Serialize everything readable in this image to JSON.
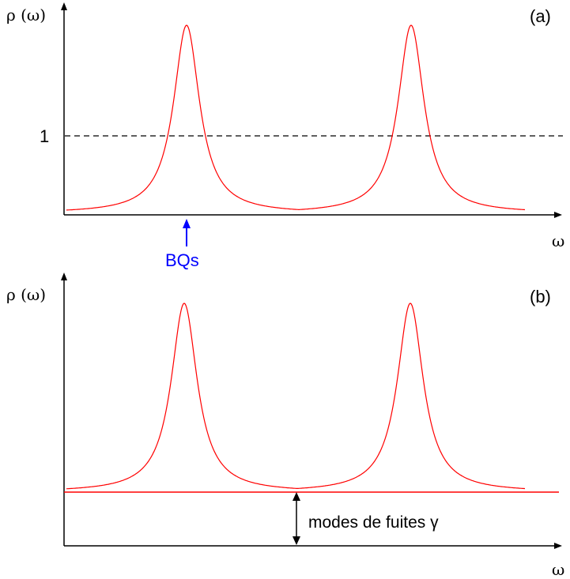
{
  "panel_a": {
    "tag": "(a)",
    "y_axis_label": "ρ (ω)",
    "x_axis_label": "ω",
    "tick_one": "1",
    "arrow_label": "BQs"
  },
  "panel_b": {
    "tag": "(b)",
    "y_axis_label": "ρ (ω)",
    "x_axis_label": "ω",
    "annotation": "modes de fuites γ"
  },
  "colors": {
    "axis": "#000000",
    "curve": "#ff0000",
    "bq_arrow": "#0000ff",
    "dashed_line": "#000000"
  }
}
